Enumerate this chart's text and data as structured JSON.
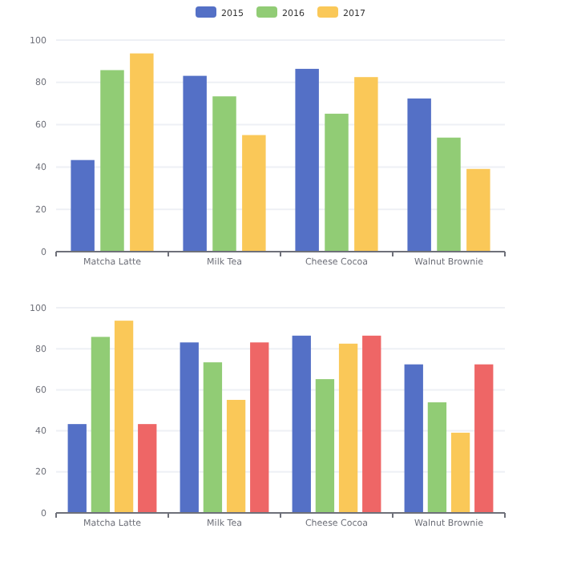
{
  "chart_data": [
    {
      "type": "bar",
      "categories": [
        "Matcha Latte",
        "Milk Tea",
        "Cheese Cocoa",
        "Walnut Brownie"
      ],
      "series": [
        {
          "name": "2015",
          "color": "#5470c6",
          "values": [
            43.3,
            83.1,
            86.4,
            72.4
          ]
        },
        {
          "name": "2016",
          "color": "#91cc75",
          "values": [
            85.8,
            73.4,
            65.2,
            53.9
          ]
        },
        {
          "name": "2017",
          "color": "#fac858",
          "values": [
            93.7,
            55.1,
            82.5,
            39.1
          ]
        }
      ],
      "ylim": [
        0,
        100
      ],
      "yticks": [
        0,
        20,
        40,
        60,
        80,
        100
      ],
      "grid": "y",
      "legend": "top"
    },
    {
      "type": "bar",
      "categories": [
        "Matcha Latte",
        "Milk Tea",
        "Cheese Cocoa",
        "Walnut Brownie"
      ],
      "series": [
        {
          "color": "#5470c6",
          "values": [
            43.3,
            83.1,
            86.4,
            72.4
          ]
        },
        {
          "color": "#91cc75",
          "values": [
            85.8,
            73.4,
            65.2,
            53.9
          ]
        },
        {
          "color": "#fac858",
          "values": [
            93.7,
            55.1,
            82.5,
            39.1
          ]
        },
        {
          "color": "#ee6666",
          "values": [
            43.3,
            83.1,
            86.4,
            72.4
          ]
        }
      ],
      "ylim": [
        0,
        100
      ],
      "yticks": [
        0,
        20,
        40,
        60,
        80,
        100
      ],
      "grid": "y",
      "legend": false
    }
  ]
}
